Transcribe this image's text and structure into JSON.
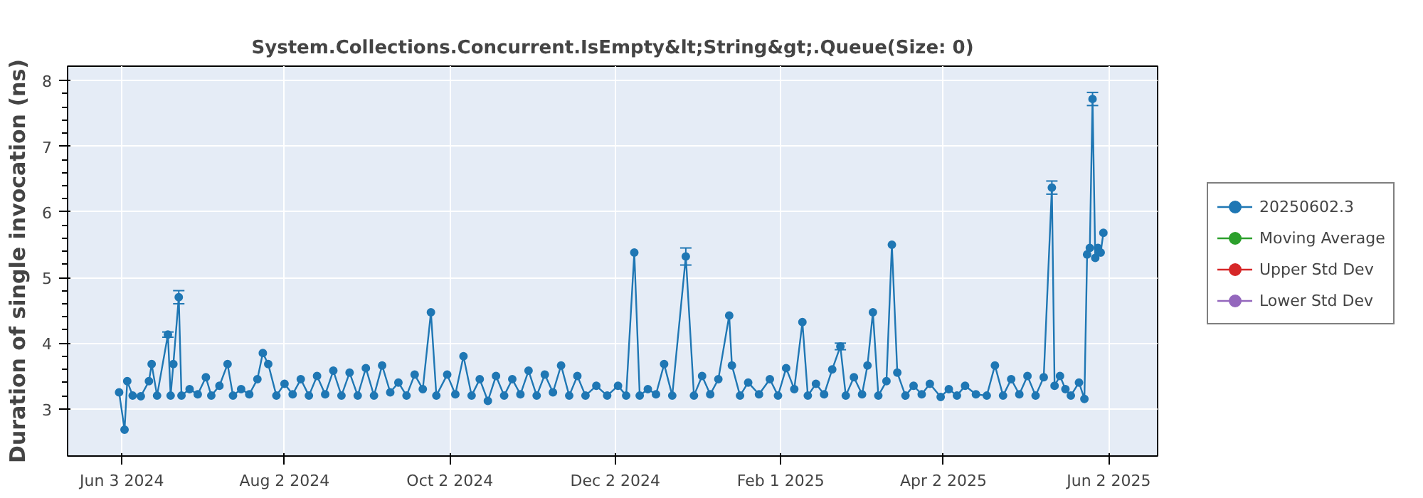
{
  "chart_data": {
    "type": "line",
    "title": "System.Collections.Concurrent.IsEmpty&lt;String&gt;.Queue(Size: 0)",
    "ylabel": "Duration of single invocation (ns)",
    "xlim": [
      "2024-05-14",
      "2025-06-20"
    ],
    "xticks": [
      {
        "value": "2024-06-03",
        "label": "Jun 3 2024"
      },
      {
        "value": "2024-08-02",
        "label": "Aug 2 2024"
      },
      {
        "value": "2024-10-02",
        "label": "Oct 2 2024"
      },
      {
        "value": "2024-12-02",
        "label": "Dec 2 2024"
      },
      {
        "value": "2025-02-01",
        "label": "Feb 1 2025"
      },
      {
        "value": "2025-04-02",
        "label": "Apr 2 2025"
      },
      {
        "value": "2025-06-02",
        "label": "Jun 2 2025"
      }
    ],
    "ylim": [
      2.28,
      8.22
    ],
    "yticks": [
      3,
      4,
      5,
      6,
      7,
      8
    ],
    "grid": true,
    "legend": "right",
    "marker": "circle",
    "x": [
      "2024-06-02",
      "2024-06-04",
      "2024-06-05",
      "2024-06-07",
      "2024-06-10",
      "2024-06-13",
      "2024-06-14",
      "2024-06-16",
      "2024-06-20",
      "2024-06-21",
      "2024-06-22",
      "2024-06-24",
      "2024-06-25",
      "2024-06-28",
      "2024-07-01",
      "2024-07-04",
      "2024-07-06",
      "2024-07-09",
      "2024-07-12",
      "2024-07-14",
      "2024-07-17",
      "2024-07-20",
      "2024-07-23",
      "2024-07-25",
      "2024-07-27",
      "2024-07-30",
      "2024-08-02",
      "2024-08-05",
      "2024-08-08",
      "2024-08-11",
      "2024-08-14",
      "2024-08-17",
      "2024-08-20",
      "2024-08-23",
      "2024-08-26",
      "2024-08-29",
      "2024-09-01",
      "2024-09-04",
      "2024-09-07",
      "2024-09-10",
      "2024-09-13",
      "2024-09-16",
      "2024-09-19",
      "2024-09-22",
      "2024-09-25",
      "2024-09-27",
      "2024-10-01",
      "2024-10-04",
      "2024-10-07",
      "2024-10-10",
      "2024-10-13",
      "2024-10-16",
      "2024-10-19",
      "2024-10-22",
      "2024-10-25",
      "2024-10-28",
      "2024-10-31",
      "2024-11-03",
      "2024-11-06",
      "2024-11-09",
      "2024-11-12",
      "2024-11-15",
      "2024-11-18",
      "2024-11-21",
      "2024-11-25",
      "2024-11-29",
      "2024-12-03",
      "2024-12-06",
      "2024-12-09",
      "2024-12-11",
      "2024-12-14",
      "2024-12-17",
      "2024-12-20",
      "2024-12-23",
      "2024-12-28",
      "2024-12-31",
      "2025-01-03",
      "2025-01-06",
      "2025-01-09",
      "2025-01-13",
      "2025-01-14",
      "2025-01-17",
      "2025-01-20",
      "2025-01-24",
      "2025-01-28",
      "2025-01-31",
      "2025-02-03",
      "2025-02-06",
      "2025-02-09",
      "2025-02-11",
      "2025-02-14",
      "2025-02-17",
      "2025-02-20",
      "2025-02-23",
      "2025-02-25",
      "2025-02-28",
      "2025-03-03",
      "2025-03-05",
      "2025-03-07",
      "2025-03-09",
      "2025-03-12",
      "2025-03-14",
      "2025-03-16",
      "2025-03-19",
      "2025-03-22",
      "2025-03-25",
      "2025-03-28",
      "2025-04-01",
      "2025-04-04",
      "2025-04-07",
      "2025-04-10",
      "2025-04-14",
      "2025-04-18",
      "2025-04-21",
      "2025-04-24",
      "2025-04-27",
      "2025-04-30",
      "2025-05-03",
      "2025-05-06",
      "2025-05-09",
      "2025-05-12",
      "2025-05-13",
      "2025-05-15",
      "2025-05-17",
      "2025-05-19",
      "2025-05-22",
      "2025-05-24",
      "2025-05-25",
      "2025-05-26",
      "2025-05-27",
      "2025-05-28",
      "2025-05-29",
      "2025-05-30",
      "2025-05-31"
    ],
    "series": [
      {
        "name": "20250602.3",
        "color": "#1f77b4",
        "values": [
          3.25,
          2.68,
          3.42,
          3.2,
          3.19,
          3.42,
          3.68,
          3.2,
          4.13,
          3.2,
          3.68,
          4.7,
          3.2,
          3.3,
          3.22,
          3.48,
          3.2,
          3.35,
          3.68,
          3.2,
          3.3,
          3.22,
          3.45,
          3.85,
          3.68,
          3.2,
          3.38,
          3.22,
          3.45,
          3.2,
          3.5,
          3.22,
          3.58,
          3.2,
          3.55,
          3.2,
          3.62,
          3.2,
          3.66,
          3.25,
          3.4,
          3.2,
          3.52,
          3.3,
          4.47,
          3.2,
          3.52,
          3.22,
          3.8,
          3.2,
          3.45,
          3.12,
          3.5,
          3.2,
          3.45,
          3.22,
          3.58,
          3.2,
          3.52,
          3.25,
          3.66,
          3.2,
          3.5,
          3.2,
          3.35,
          3.2,
          3.35,
          3.2,
          5.38,
          3.2,
          3.3,
          3.22,
          3.68,
          3.2,
          5.32,
          3.2,
          3.5,
          3.22,
          3.45,
          4.42,
          3.66,
          3.2,
          3.4,
          3.22,
          3.45,
          3.2,
          3.62,
          3.3,
          4.32,
          3.2,
          3.38,
          3.22,
          3.6,
          3.95,
          3.2,
          3.48,
          3.22,
          3.66,
          4.47,
          3.2,
          3.42,
          5.5,
          3.55,
          3.2,
          3.35,
          3.22,
          3.38,
          3.18,
          3.3,
          3.2,
          3.35,
          3.22,
          3.2,
          3.66,
          3.2,
          3.45,
          3.22,
          3.5,
          3.2,
          3.48,
          6.37,
          3.35,
          3.5,
          3.3,
          3.2,
          3.4,
          3.15,
          5.35,
          5.45,
          7.72,
          5.3,
          5.45,
          5.38,
          5.68
        ],
        "errors": [
          null,
          null,
          null,
          null,
          null,
          null,
          null,
          null,
          0.04,
          null,
          null,
          0.1,
          null,
          null,
          null,
          null,
          null,
          null,
          null,
          null,
          null,
          null,
          null,
          null,
          null,
          null,
          null,
          null,
          null,
          null,
          null,
          null,
          null,
          null,
          null,
          null,
          null,
          null,
          null,
          null,
          null,
          null,
          null,
          null,
          null,
          null,
          null,
          null,
          null,
          null,
          null,
          null,
          null,
          null,
          null,
          null,
          null,
          null,
          null,
          null,
          null,
          null,
          null,
          null,
          null,
          null,
          null,
          null,
          null,
          null,
          null,
          null,
          null,
          null,
          0.13,
          null,
          null,
          null,
          null,
          null,
          null,
          null,
          null,
          null,
          null,
          null,
          null,
          null,
          null,
          null,
          null,
          null,
          null,
          0.05,
          null,
          null,
          null,
          null,
          null,
          null,
          null,
          null,
          null,
          null,
          null,
          null,
          null,
          null,
          null,
          null,
          null,
          null,
          null,
          null,
          null,
          null,
          null,
          null,
          null,
          null,
          0.1,
          null,
          null,
          null,
          null,
          null,
          null,
          null,
          null,
          0.1,
          null,
          null,
          null,
          null
        ]
      },
      {
        "name": "Moving Average",
        "color": "#2ca02c",
        "values": [
          null,
          null,
          null,
          null,
          null,
          null,
          null,
          null,
          null,
          null,
          null,
          null,
          null,
          null,
          null,
          null,
          null,
          null,
          null,
          null,
          null,
          null,
          null,
          null,
          null,
          null,
          null,
          null,
          null,
          null,
          null,
          null,
          null,
          null,
          null,
          null,
          null,
          null,
          null,
          null,
          null,
          null,
          null,
          null,
          null,
          null,
          null,
          null,
          null,
          null,
          null,
          null,
          null,
          null,
          null,
          null,
          null,
          null,
          null,
          null,
          null,
          null,
          null,
          null,
          null,
          null,
          null,
          null,
          null,
          null,
          null,
          null,
          null,
          null,
          null,
          null,
          null,
          null,
          null,
          null,
          null,
          null,
          null,
          null,
          null,
          null,
          null,
          null,
          null,
          null,
          null,
          null,
          null,
          null,
          null,
          null,
          null,
          null,
          null,
          null,
          null,
          null,
          null,
          null,
          null,
          null,
          null,
          null,
          null,
          null,
          null,
          null,
          null,
          null,
          null,
          null,
          null,
          null,
          null,
          null,
          null,
          null,
          null,
          null,
          null,
          null,
          null,
          null,
          null,
          null,
          null,
          null,
          null,
          null
        ]
      },
      {
        "name": "Upper Std Dev",
        "color": "#d62728",
        "values": [
          null,
          null,
          null,
          null,
          null,
          null,
          null,
          null,
          null,
          null,
          null,
          null,
          null,
          null,
          null,
          null,
          null,
          null,
          null,
          null,
          null,
          null,
          null,
          null,
          null,
          null,
          null,
          null,
          null,
          null,
          null,
          null,
          null,
          null,
          null,
          null,
          null,
          null,
          null,
          null,
          null,
          null,
          null,
          null,
          null,
          null,
          null,
          null,
          null,
          null,
          null,
          null,
          null,
          null,
          null,
          null,
          null,
          null,
          null,
          null,
          null,
          null,
          null,
          null,
          null,
          null,
          null,
          null,
          null,
          null,
          null,
          null,
          null,
          null,
          null,
          null,
          null,
          null,
          null,
          null,
          null,
          null,
          null,
          null,
          null,
          null,
          null,
          null,
          null,
          null,
          null,
          null,
          null,
          null,
          null,
          null,
          null,
          null,
          null,
          null,
          null,
          null,
          null,
          null,
          null,
          null,
          null,
          null,
          null,
          null,
          null,
          null,
          null,
          null,
          null,
          null,
          null,
          null,
          null,
          null,
          null,
          null,
          null,
          null,
          null,
          null,
          null,
          null,
          null,
          null,
          null,
          null,
          null,
          null
        ]
      },
      {
        "name": "Lower Std Dev",
        "color": "#9467bd",
        "values": [
          null,
          null,
          null,
          null,
          null,
          null,
          null,
          null,
          null,
          null,
          null,
          null,
          null,
          null,
          null,
          null,
          null,
          null,
          null,
          null,
          null,
          null,
          null,
          null,
          null,
          null,
          null,
          null,
          null,
          null,
          null,
          null,
          null,
          null,
          null,
          null,
          null,
          null,
          null,
          null,
          null,
          null,
          null,
          null,
          null,
          null,
          null,
          null,
          null,
          null,
          null,
          null,
          null,
          null,
          null,
          null,
          null,
          null,
          null,
          null,
          null,
          null,
          null,
          null,
          null,
          null,
          null,
          null,
          null,
          null,
          null,
          null,
          null,
          null,
          null,
          null,
          null,
          null,
          null,
          null,
          null,
          null,
          null,
          null,
          null,
          null,
          null,
          null,
          null,
          null,
          null,
          null,
          null,
          null,
          null,
          null,
          null,
          null,
          null,
          null,
          null,
          null,
          null,
          null,
          null,
          null,
          null,
          null,
          null,
          null,
          null,
          null,
          null,
          null,
          null,
          null,
          null,
          null,
          null,
          null,
          null,
          null,
          null,
          null,
          null,
          null,
          null,
          null,
          null,
          null,
          null,
          null,
          null,
          null
        ]
      }
    ]
  }
}
